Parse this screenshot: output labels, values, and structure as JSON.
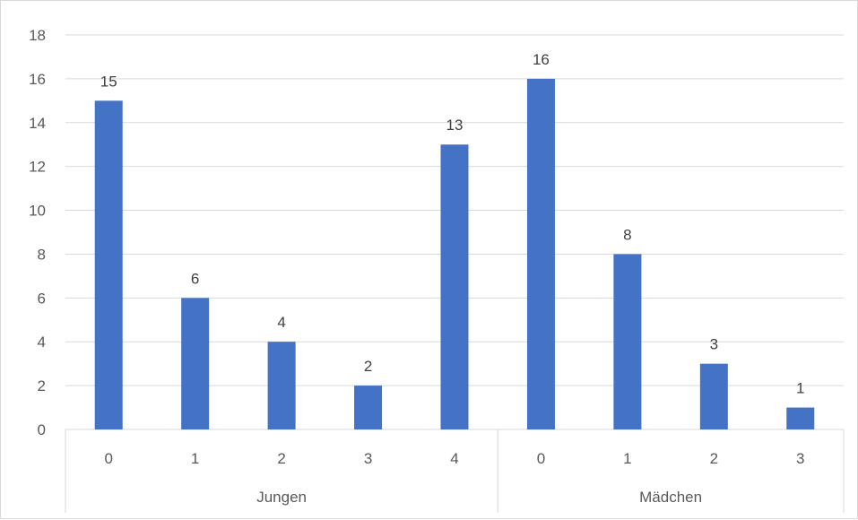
{
  "chart_data": {
    "type": "bar",
    "groups": [
      {
        "name": "Jungen",
        "categories": [
          "0",
          "1",
          "2",
          "3",
          "4"
        ],
        "values": [
          15,
          6,
          4,
          2,
          13
        ]
      },
      {
        "name": "Mädchen",
        "categories": [
          "0",
          "1",
          "2",
          "3"
        ],
        "values": [
          16,
          8,
          3,
          1
        ]
      }
    ],
    "yticks": [
      0,
      2,
      4,
      6,
      8,
      10,
      12,
      14,
      16,
      18
    ],
    "ylim": [
      0,
      18
    ],
    "grid": true,
    "data_labels": true,
    "bar_color": "#4472c4",
    "gridline_color": "#d9d9d9"
  }
}
